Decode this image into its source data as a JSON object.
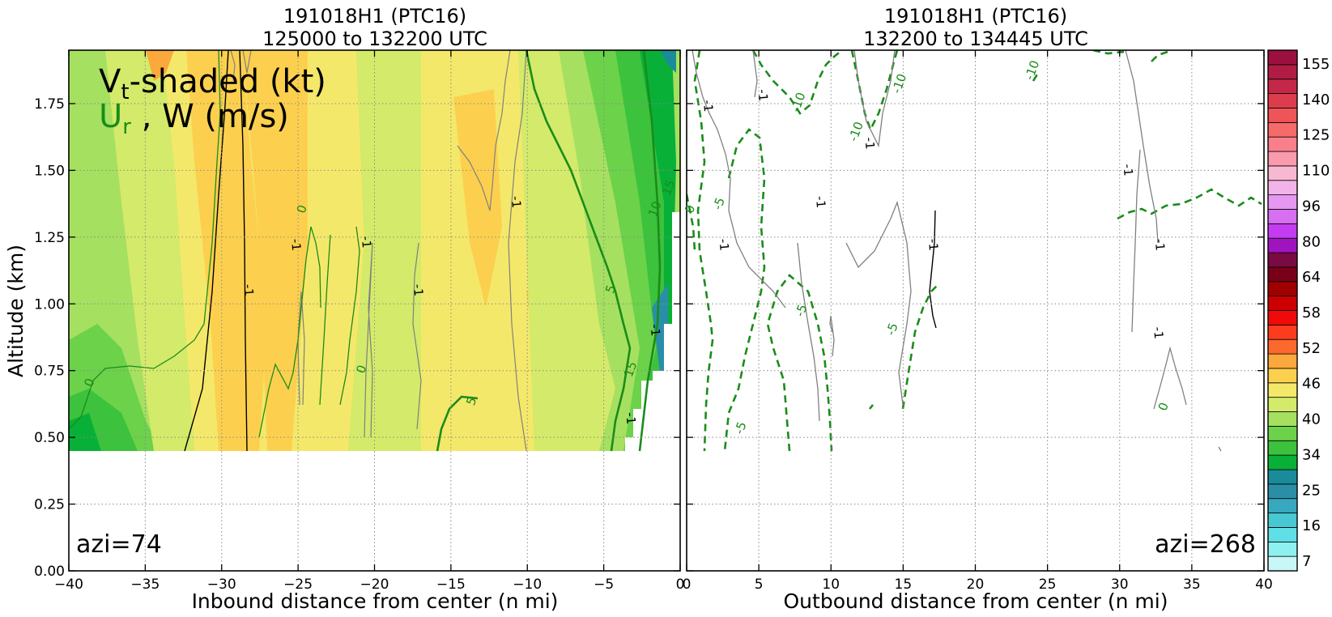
{
  "chart_data": [
    {
      "type": "contour",
      "title_line1": "191018H1 (PTC16)",
      "title_line2": "125000 to 132200 UTC",
      "xlabel": "Inbound distance from center (n mi)",
      "ylabel": "Altitude (km)",
      "xlim": [
        -40,
        0
      ],
      "ylim": [
        0,
        1.95
      ],
      "xticks": [
        "−40",
        "−35",
        "−30",
        "−25",
        "−20",
        "−15",
        "−10",
        "−5",
        "0"
      ],
      "xtick_values": [
        -40,
        -35,
        -30,
        -25,
        -20,
        -15,
        -10,
        -5,
        0
      ],
      "yticks": [
        "0.00",
        "0.25",
        "0.50",
        "0.75",
        "1.00",
        "1.25",
        "1.50",
        "1.75"
      ],
      "ytick_values": [
        0,
        0.25,
        0.5,
        0.75,
        1.0,
        1.25,
        1.5,
        1.75
      ],
      "grid": true,
      "legend_vt": "V",
      "legend_vt_sub": "t",
      "legend_vt_rest": "-shaded (kt)",
      "legend_ur": "U",
      "legend_ur_sub": "r",
      "legend_w": " , W (m/s)",
      "azimuth": "azi=74",
      "data_bottom_km": 0.45,
      "vt_shaded_bands_kt": [
        {
          "x": [
            -40,
            -33
          ],
          "level": 40
        },
        {
          "x": [
            -33,
            -29
          ],
          "level": 43
        },
        {
          "x": [
            -29,
            -23
          ],
          "level": 46
        },
        {
          "x": [
            -23,
            -19
          ],
          "level": 43
        },
        {
          "x": [
            -19,
            -13
          ],
          "level": 43
        },
        {
          "x": [
            -13,
            -10
          ],
          "level": 46
        },
        {
          "x": [
            -10,
            -6
          ],
          "level": 40
        },
        {
          "x": [
            -6,
            -3
          ],
          "level": 37
        },
        {
          "x": [
            -3,
            -1
          ],
          "level": 34
        }
      ],
      "contour_labels": [
        {
          "text": "-1",
          "x": -28.5,
          "y": 1.05,
          "series": "W"
        },
        {
          "text": "-1",
          "x": -25.4,
          "y": 1.22,
          "series": "W"
        },
        {
          "text": "-1",
          "x": -20.8,
          "y": 1.23,
          "series": "W"
        },
        {
          "text": "-1",
          "x": -17.4,
          "y": 1.05,
          "series": "W"
        },
        {
          "text": "-1",
          "x": -11.0,
          "y": 1.38,
          "series": "W"
        },
        {
          "text": "-1",
          "x": -1.9,
          "y": 0.9,
          "series": "W"
        },
        {
          "text": "-1",
          "x": -3.5,
          "y": 0.57,
          "series": "W"
        },
        {
          "text": "0",
          "x": -24.5,
          "y": 1.35,
          "series": "Ur"
        },
        {
          "text": "0",
          "x": -20.6,
          "y": 0.75,
          "series": "Ur"
        },
        {
          "text": "0",
          "x": -38.4,
          "y": 0.7,
          "series": "Ur"
        },
        {
          "text": "5",
          "x": -13.4,
          "y": 0.63,
          "series": "Ur"
        },
        {
          "text": "5",
          "x": -4.3,
          "y": 1.05,
          "series": "Ur"
        },
        {
          "text": "10",
          "x": -1.4,
          "y": 1.35,
          "series": "Ur"
        },
        {
          "text": "15",
          "x": -0.5,
          "y": 1.43,
          "series": "Ur"
        },
        {
          "text": "15",
          "x": -3.0,
          "y": 0.75,
          "series": "Ur"
        }
      ]
    },
    {
      "type": "contour",
      "title_line1": "191018H1 (PTC16)",
      "title_line2": "132200 to 134445 UTC",
      "xlabel": "Outbound distance from center (n mi)",
      "xlim": [
        0,
        40
      ],
      "ylim": [
        0,
        1.95
      ],
      "xticks": [
        "0",
        "5",
        "10",
        "15",
        "20",
        "25",
        "30",
        "35",
        "40"
      ],
      "xtick_values": [
        0,
        5,
        10,
        15,
        20,
        25,
        30,
        35,
        40
      ],
      "grid": true,
      "azimuth": "azi=268",
      "contour_labels": [
        {
          "text": "-1",
          "x": 1.2,
          "y": 1.74,
          "series": "W"
        },
        {
          "text": "-1",
          "x": 5.0,
          "y": 1.78,
          "series": "W"
        },
        {
          "text": "-1",
          "x": 12.4,
          "y": 1.6,
          "series": "W"
        },
        {
          "text": "-1",
          "x": 9.0,
          "y": 1.38,
          "series": "W"
        },
        {
          "text": "-1",
          "x": 2.3,
          "y": 1.22,
          "series": "W"
        },
        {
          "text": "-1",
          "x": 16.8,
          "y": 1.22,
          "series": "W"
        },
        {
          "text": "-1",
          "x": 30.3,
          "y": 1.5,
          "series": "W"
        },
        {
          "text": "-1",
          "x": 32.5,
          "y": 1.22,
          "series": "W"
        },
        {
          "text": "-1",
          "x": 32.4,
          "y": 0.89,
          "series": "W"
        },
        {
          "text": "-10",
          "x": 8.0,
          "y": 1.75,
          "series": "Ur"
        },
        {
          "text": "-10",
          "x": 12.0,
          "y": 1.64,
          "series": "Ur"
        },
        {
          "text": "-10",
          "x": 15.0,
          "y": 1.82,
          "series": "Ur"
        },
        {
          "text": "-10",
          "x": 24.2,
          "y": 1.87,
          "series": "Ur"
        },
        {
          "text": "-5",
          "x": 2.5,
          "y": 1.37,
          "series": "Ur"
        },
        {
          "text": "-5",
          "x": 8.2,
          "y": 0.97,
          "series": "Ur"
        },
        {
          "text": "-5",
          "x": 14.5,
          "y": 0.9,
          "series": "Ur"
        },
        {
          "text": "-5",
          "x": 4.0,
          "y": 0.53,
          "series": "Ur"
        },
        {
          "text": "0",
          "x": 0.5,
          "y": 1.35,
          "series": "Ur"
        },
        {
          "text": "0",
          "x": 33.3,
          "y": 0.61,
          "series": "Ur"
        }
      ]
    },
    {
      "type": "colorbar",
      "tick_labels": [
        "155",
        "140",
        "125",
        "110",
        "96",
        "80",
        "64",
        "58",
        "52",
        "46",
        "40",
        "34",
        "25",
        "16",
        "7"
      ],
      "tick_values": [
        155,
        140,
        125,
        110,
        96,
        80,
        64,
        58,
        52,
        46,
        40,
        34,
        25,
        16,
        7
      ],
      "colors_bottom_to_top": [
        "#c8f7f7",
        "#8ff0f0",
        "#5fe0e6",
        "#47c8d2",
        "#37a8bd",
        "#2a8fa6",
        "#1a8c99",
        "#08b038",
        "#3cc23c",
        "#6bd24a",
        "#a6e060",
        "#d4ea6a",
        "#f4e86a",
        "#fcd04e",
        "#fba83c",
        "#fb6a2c",
        "#fc3c1c",
        "#f00a0a",
        "#cc0000",
        "#a00000",
        "#7a0018",
        "#7a0a42",
        "#a014c0",
        "#c43cf0",
        "#d86ef2",
        "#e697f0",
        "#f2b4e8",
        "#f7b8d0",
        "#fa9aae",
        "#f9808a",
        "#f66a6a",
        "#ee5458",
        "#dc3c4c",
        "#c42848",
        "#b01c44",
        "#9c1040"
      ]
    }
  ]
}
